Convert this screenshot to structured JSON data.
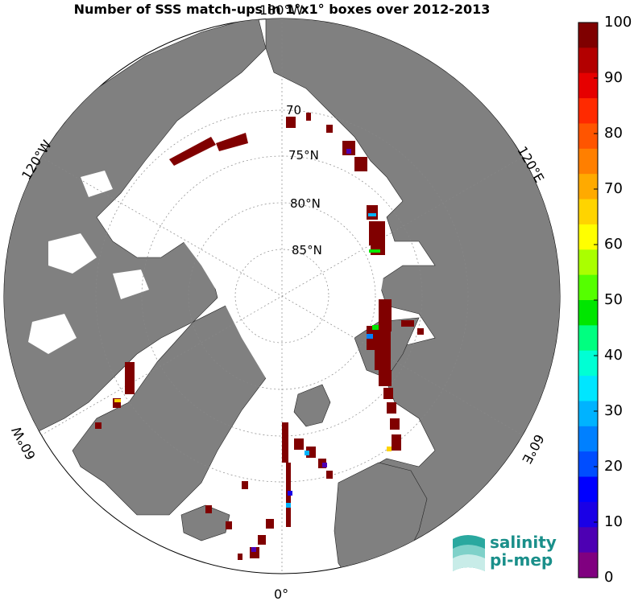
{
  "title": "Number of SSS match-ups in 1°x1° boxes over 2012-2013",
  "labels": {
    "lon_180w": "180°W",
    "lon_120w": "120°W",
    "lon_120e": "120°E",
    "lon_60w": "60°W",
    "lon_60e": "60°E",
    "lon_0": "0°",
    "lat_70": "70",
    "lat_75": "75°N",
    "lat_80": "80°N",
    "lat_85": "85°N"
  },
  "colorbar": {
    "min": 0,
    "max": 100,
    "ticks": [
      "100",
      "90",
      "80",
      "70",
      "60",
      "50",
      "40",
      "30",
      "20",
      "10",
      "0"
    ],
    "colors": [
      "#7f0000",
      "#b30000",
      "#e60000",
      "#ff2a00",
      "#ff5500",
      "#ff7f00",
      "#ffaa00",
      "#ffd400",
      "#ffff00",
      "#aaff00",
      "#55ff00",
      "#00e600",
      "#00ff80",
      "#00ffd4",
      "#00e6ff",
      "#00b3ff",
      "#0080ff",
      "#004dff",
      "#0000ff",
      "#1a00e6",
      "#4d00b3",
      "#800080"
    ]
  },
  "colors": {
    "land": "#808080",
    "ocean": "#ffffff",
    "match_max": "#800000"
  },
  "logo": {
    "line1": "salinity",
    "line2": "pi-mep"
  }
}
